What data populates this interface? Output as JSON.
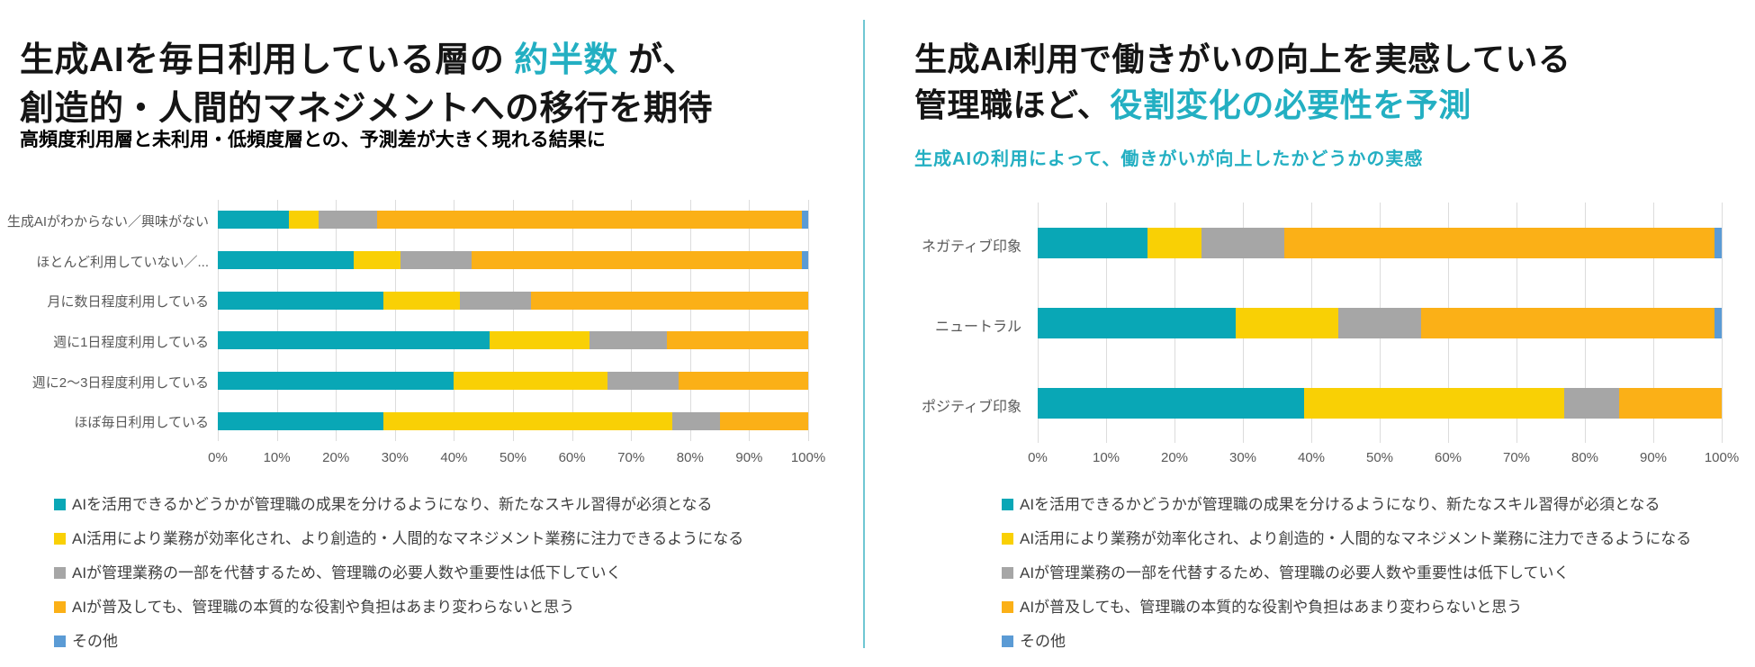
{
  "panels": {
    "left": {
      "title": {
        "pre": "生成AIを毎日利用している層の ",
        "accent": "約半数",
        "post": " が、",
        "line2": "創造的・人間的マネジメントへの移行を期待"
      },
      "subtitle": "高頻度利用層と未利用・低頻度層との、予測差が大きく現れる結果に"
    },
    "right": {
      "title": {
        "line1": "生成AI利用で働きがいの向上を実感している",
        "pre2": "管理職ほど、",
        "accent": "役割変化の必要性を予測"
      },
      "subtitle": "生成AIの利用によって、働きがいが向上したかどうかの実感"
    }
  },
  "colors": {
    "accent_teal": "#23afc2",
    "divider": "#6fc7d3",
    "series": [
      "#09a7b6",
      "#f9d005",
      "#a6a6a6",
      "#fbb017",
      "#5b9bd5"
    ]
  },
  "axis_ticks": [
    "0%",
    "10%",
    "20%",
    "30%",
    "40%",
    "50%",
    "60%",
    "70%",
    "80%",
    "90%",
    "100%"
  ],
  "chart_data": [
    {
      "type": "bar",
      "orientation": "horizontal-stacked",
      "title": "生成AIを毎日利用している層の約半数が、創造的・人間的マネジメントへの移行を期待",
      "xlim": [
        0,
        100
      ],
      "xticks": [
        "0%",
        "10%",
        "20%",
        "30%",
        "40%",
        "50%",
        "60%",
        "70%",
        "80%",
        "90%",
        "100%"
      ],
      "legend_position": "bottom",
      "categories": [
        "生成AIがわからない／興味がない",
        "ほとんど利用していない／...",
        "月に数日程度利用している",
        "週に1日程度利用している",
        "週に2〜3日程度利用している",
        "ほぼ毎日利用している"
      ],
      "series": [
        {
          "name": "AIを活用できるかどうかが管理職の成果を分けるようになり、新たなスキル習得が必須となる",
          "color": "#09a7b6",
          "values": [
            12,
            23,
            28,
            46,
            40,
            28
          ]
        },
        {
          "name": "AI活用により業務が効率化され、より創造的・人間的なマネジメント業務に注力できるようになる",
          "color": "#f9d005",
          "values": [
            5,
            8,
            13,
            17,
            26,
            49
          ]
        },
        {
          "name": "AIが管理業務の一部を代替するため、管理職の必要人数や重要性は低下していく",
          "color": "#a6a6a6",
          "values": [
            10,
            12,
            12,
            13,
            12,
            8
          ]
        },
        {
          "name": "AIが普及しても、管理職の本質的な役割や負担はあまり変わらないと思う",
          "color": "#fbb017",
          "values": [
            72,
            56,
            47,
            24,
            22,
            15
          ]
        },
        {
          "name": "その他",
          "color": "#5b9bd5",
          "values": [
            1,
            1,
            0,
            0,
            0,
            0
          ]
        }
      ]
    },
    {
      "type": "bar",
      "orientation": "horizontal-stacked",
      "title": "生成AIの利用によって、働きがいが向上したかどうかの実感",
      "xlim": [
        0,
        100
      ],
      "xticks": [
        "0%",
        "10%",
        "20%",
        "30%",
        "40%",
        "50%",
        "60%",
        "70%",
        "80%",
        "90%",
        "100%"
      ],
      "legend_position": "bottom",
      "categories": [
        "ネガティブ印象",
        "ニュートラル",
        "ポジティブ印象"
      ],
      "series": [
        {
          "name": "AIを活用できるかどうかが管理職の成果を分けるようになり、新たなスキル習得が必須となる",
          "color": "#09a7b6",
          "values": [
            16,
            29,
            39
          ]
        },
        {
          "name": "AI活用により業務が効率化され、より創造的・人間的なマネジメント業務に注力できるようになる",
          "color": "#f9d005",
          "values": [
            8,
            15,
            38
          ]
        },
        {
          "name": "AIが管理業務の一部を代替するため、管理職の必要人数や重要性は低下していく",
          "color": "#a6a6a6",
          "values": [
            12,
            12,
            8
          ]
        },
        {
          "name": "AIが普及しても、管理職の本質的な役割や負担はあまり変わらないと思う",
          "color": "#fbb017",
          "values": [
            63,
            43,
            15
          ]
        },
        {
          "name": "その他",
          "color": "#5b9bd5",
          "values": [
            1,
            1,
            0
          ]
        }
      ]
    }
  ]
}
